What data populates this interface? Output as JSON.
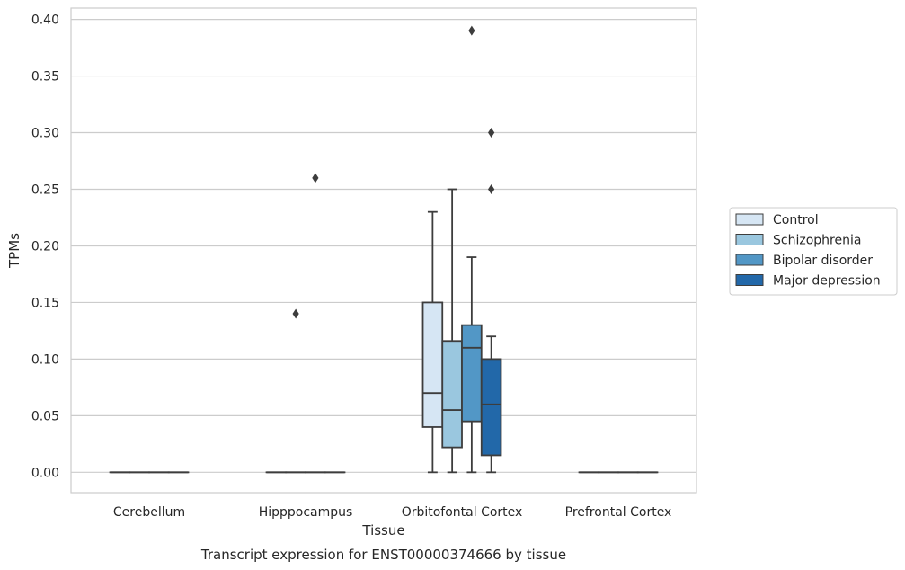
{
  "chart_data": {
    "type": "box",
    "title": "Transcript expression for ENST00000374666 by tissue",
    "xlabel": "Tissue",
    "ylabel": "TPMs",
    "ylim": [
      -0.018,
      0.41
    ],
    "yticks": [
      "0.00",
      "0.05",
      "0.10",
      "0.15",
      "0.20",
      "0.25",
      "0.30",
      "0.35",
      "0.40"
    ],
    "grid": true,
    "legend_position": "right",
    "categories": [
      "Cerebellum",
      "Hipppocampus",
      "Orbitofontal Cortex",
      "Prefrontal Cortex"
    ],
    "series": [
      {
        "name": "Control",
        "color": "#d6e6f4",
        "boxes": [
          {
            "min": 0,
            "q1": 0,
            "median": 0,
            "q3": 0,
            "max": 0,
            "outliers": []
          },
          {
            "min": 0,
            "q1": 0,
            "median": 0,
            "q3": 0,
            "max": 0,
            "outliers": []
          },
          {
            "min": 0,
            "q1": 0.04,
            "median": 0.07,
            "q3": 0.15,
            "max": 0.23,
            "outliers": []
          },
          {
            "min": 0,
            "q1": 0,
            "median": 0,
            "q3": 0,
            "max": 0,
            "outliers": []
          }
        ]
      },
      {
        "name": "Schizophrenia",
        "color": "#9ac7df",
        "boxes": [
          {
            "min": 0,
            "q1": 0,
            "median": 0,
            "q3": 0,
            "max": 0,
            "outliers": []
          },
          {
            "min": 0,
            "q1": 0,
            "median": 0,
            "q3": 0,
            "max": 0,
            "outliers": [
              0.14
            ]
          },
          {
            "min": 0,
            "q1": 0.022,
            "median": 0.055,
            "q3": 0.116,
            "max": 0.25,
            "outliers": []
          },
          {
            "min": 0,
            "q1": 0,
            "median": 0,
            "q3": 0,
            "max": 0,
            "outliers": []
          }
        ]
      },
      {
        "name": "Bipolar disorder",
        "color": "#5297c6",
        "boxes": [
          {
            "min": 0,
            "q1": 0,
            "median": 0,
            "q3": 0,
            "max": 0,
            "outliers": []
          },
          {
            "min": 0,
            "q1": 0,
            "median": 0,
            "q3": 0,
            "max": 0,
            "outliers": [
              0.26
            ]
          },
          {
            "min": 0,
            "q1": 0.045,
            "median": 0.11,
            "q3": 0.13,
            "max": 0.19,
            "outliers": [
              0.39
            ]
          },
          {
            "min": 0,
            "q1": 0,
            "median": 0,
            "q3": 0,
            "max": 0,
            "outliers": []
          }
        ]
      },
      {
        "name": "Major depression",
        "color": "#2268a9",
        "boxes": [
          {
            "min": 0,
            "q1": 0,
            "median": 0,
            "q3": 0,
            "max": 0,
            "outliers": []
          },
          {
            "min": 0,
            "q1": 0,
            "median": 0,
            "q3": 0,
            "max": 0,
            "outliers": []
          },
          {
            "min": 0,
            "q1": 0.015,
            "median": 0.06,
            "q3": 0.1,
            "max": 0.12,
            "outliers": [
              0.25,
              0.3
            ]
          },
          {
            "min": 0,
            "q1": 0,
            "median": 0,
            "q3": 0,
            "max": 0,
            "outliers": []
          }
        ]
      }
    ]
  }
}
